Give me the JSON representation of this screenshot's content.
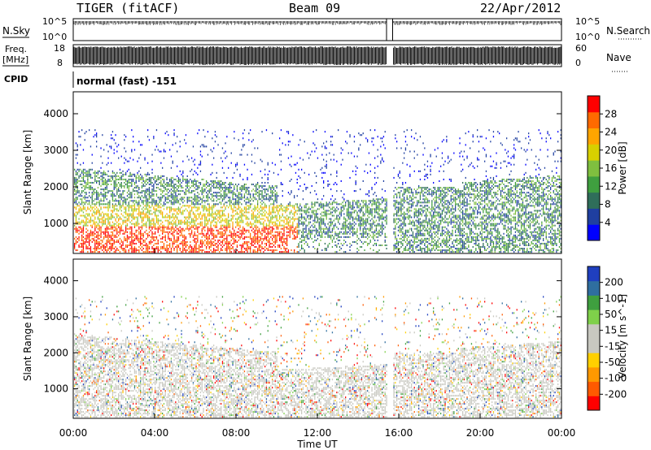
{
  "header": {
    "radar": "TIGER (fitACF)",
    "beam": "Beam 09",
    "date": "22/Apr/2012"
  },
  "top_panels": {
    "nsky_label": "N.Sky",
    "nsearch_label": "N.Search",
    "nsky_ticks": [
      "10^5",
      "10^0"
    ],
    "nsearch_ticks": [
      "10^5",
      "10^0"
    ],
    "freq_label_line1": "Freq.",
    "freq_label_line2": "[MHz]",
    "freq_ticks": [
      "18",
      "8"
    ],
    "nave_label": "Nave",
    "nave_ticks": [
      "60",
      "0"
    ],
    "cpid_label": "CPID",
    "cpid_text": "normal (fast) -151"
  },
  "colors": {
    "power_scale": [
      "#0000ff",
      "#1f3fa0",
      "#2f6e5a",
      "#3f9f3f",
      "#7fbf3f",
      "#d8d000",
      "#ffa500",
      "#ff6a00",
      "#ff0000"
    ],
    "velocity_scale": [
      "#ff0000",
      "#ff5a00",
      "#ff9900",
      "#ffd000",
      "#c8c8c0",
      "#c8c8c0",
      "#7fd04a",
      "#3f9f3f",
      "#2f6e9f",
      "#1f3fbf"
    ]
  },
  "chart_data": [
    {
      "type": "heatmap",
      "title": "Power",
      "ylabel": "Slant Range [km]",
      "xlabel": "Time UT",
      "x_ticks": [
        "00:00",
        "04:00",
        "08:00",
        "12:00",
        "16:00",
        "20:00",
        "00:00"
      ],
      "y_ticks": [
        "1000",
        "2000",
        "3000",
        "4000"
      ],
      "xlim_hours": [
        0,
        24
      ],
      "ylim_km": [
        180,
        4600
      ],
      "colorbar": {
        "label": "Power [dB]",
        "ticks": [
          "4",
          "8",
          "12",
          "16",
          "20",
          "24",
          "28"
        ],
        "range": [
          0,
          32
        ]
      },
      "data_gap_hours": [
        15.4,
        15.7
      ]
    },
    {
      "type": "heatmap",
      "title": "Velocity",
      "ylabel": "Slant Range [km]",
      "xlabel": "Time UT",
      "x_ticks": [
        "00:00",
        "04:00",
        "08:00",
        "12:00",
        "16:00",
        "20:00",
        "00:00"
      ],
      "y_ticks": [
        "1000",
        "2000",
        "3000",
        "4000"
      ],
      "xlim_hours": [
        0,
        24
      ],
      "ylim_km": [
        180,
        4600
      ],
      "colorbar": {
        "label": "Velocity [m s^-1]",
        "ticks": [
          "-200",
          "-100",
          "-50",
          "-15",
          "15",
          "50",
          "100",
          "200"
        ],
        "range": [
          -250,
          250
        ]
      },
      "data_gap_hours": [
        15.4,
        15.7
      ]
    }
  ]
}
